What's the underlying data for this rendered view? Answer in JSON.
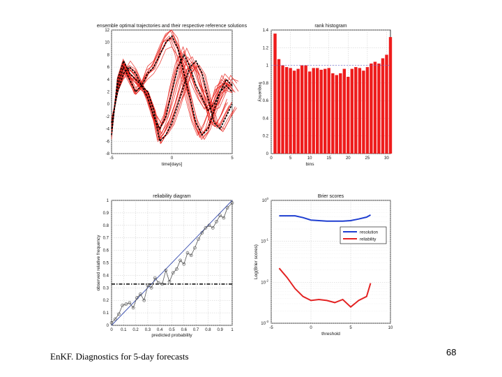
{
  "caption": "EnKF. Diagnostics for 5-day forecasts",
  "page_number": "68",
  "colors": {
    "ensemble": "#e8231c",
    "reference": "#000000",
    "bars": "#ee1c1c",
    "resolution": "#1f3fd1",
    "reliability": "#e32222",
    "diag": "#3a4fb0",
    "grid": "#c8c8c8"
  },
  "chart_data": [
    {
      "id": "trajectories",
      "type": "line",
      "title": "ensemble optimal trajectories and their respective reference solutions",
      "xlabel": "time[days]",
      "ylabel": "",
      "xlim": [
        -5,
        5
      ],
      "ylim": [
        -8,
        12
      ],
      "xticks": [
        "-5",
        "0",
        "5"
      ],
      "yticks": [
        "-8",
        "-6",
        "-4",
        "-2",
        "0",
        "2",
        "4",
        "6",
        "8",
        "10",
        "12"
      ],
      "grid": true,
      "series": [
        {
          "role": "reference",
          "x": [
            -5,
            -4.5,
            -4,
            -3.5,
            -3,
            -2.5,
            -2,
            -1.5,
            -1,
            -0.5,
            0,
            0.5,
            1,
            1.5,
            2,
            2.5,
            3,
            3.5,
            4,
            4.5,
            5
          ],
          "y": [
            -4,
            3,
            6,
            4,
            2,
            3,
            5,
            6,
            8,
            10,
            11,
            9,
            5,
            1,
            -3,
            -5,
            -4,
            -1,
            2,
            3,
            2
          ]
        },
        {
          "role": "reference",
          "x": [
            -5,
            -4.5,
            -4,
            -3.5,
            -3,
            -2.5,
            -2,
            -1.5,
            -1,
            -0.5,
            0,
            0.5,
            1,
            1.5,
            2,
            2.5,
            3,
            3.5,
            4,
            4.5,
            5
          ],
          "y": [
            -5,
            4,
            7,
            5,
            4,
            3,
            2,
            -1,
            -6,
            -5,
            -3,
            0,
            3,
            6,
            7,
            5,
            1,
            -3,
            -4,
            -2,
            0
          ]
        },
        {
          "role": "reference",
          "x": [
            -5,
            -4.5,
            -4,
            -3.5,
            -3,
            -2.5,
            -2,
            -1.5,
            -1,
            -0.5,
            0,
            0.5,
            1,
            1.5,
            2,
            2.5,
            3,
            3.5,
            4,
            4.5,
            5
          ],
          "y": [
            -3,
            2,
            5,
            6,
            5,
            3,
            1,
            -2,
            -4,
            -2,
            2,
            6,
            8,
            6,
            3,
            1,
            -1,
            0,
            2,
            4,
            3
          ]
        }
      ]
    },
    {
      "id": "rank_histogram",
      "type": "bar",
      "title": "rank histogram",
      "xlabel": "bins",
      "ylabel": "frequency",
      "xlim": [
        0,
        31
      ],
      "ylim": [
        0,
        1.4
      ],
      "xticks": [
        "0",
        "5",
        "10",
        "15",
        "20",
        "25",
        "30"
      ],
      "yticks": [
        "0",
        "0.2",
        "0.4",
        "0.6",
        "0.8",
        "1",
        "1.2",
        "1.4"
      ],
      "reference_line": 1,
      "grid": true,
      "categories": [
        1,
        2,
        3,
        4,
        5,
        6,
        7,
        8,
        9,
        10,
        11,
        12,
        13,
        14,
        15,
        16,
        17,
        18,
        19,
        20,
        21,
        22,
        23,
        24,
        25,
        26,
        27,
        28,
        29,
        30,
        31
      ],
      "values": [
        1.36,
        1.07,
        1.0,
        0.98,
        0.97,
        0.94,
        0.96,
        1.0,
        1.0,
        0.93,
        0.97,
        0.97,
        0.95,
        0.96,
        0.97,
        0.91,
        0.89,
        0.91,
        0.96,
        0.87,
        0.96,
        0.98,
        0.97,
        0.94,
        0.98,
        1.02,
        1.04,
        1.02,
        1.08,
        1.12,
        1.32
      ]
    },
    {
      "id": "reliability_diagram",
      "type": "line",
      "title": "reliability diagram",
      "xlabel": "predicted probability",
      "ylabel": "observed relative frequency",
      "xlim": [
        0,
        1
      ],
      "ylim": [
        0,
        1
      ],
      "xticks": [
        "0",
        "0.1",
        "0.2",
        "0.3",
        "0.4",
        "0.5",
        "0.6",
        "0.7",
        "0.8",
        "0.9",
        "1"
      ],
      "yticks": [
        "0",
        "0.1",
        "0.2",
        "0.3",
        "0.4",
        "0.5",
        "0.6",
        "0.7",
        "0.8",
        "0.9",
        "1"
      ],
      "grid": true,
      "climatology": 0.33,
      "series": [
        {
          "role": "diagonal",
          "x": [
            0,
            1
          ],
          "y": [
            0,
            1
          ]
        },
        {
          "role": "observed",
          "x": [
            0,
            0.03,
            0.06,
            0.09,
            0.12,
            0.15,
            0.18,
            0.21,
            0.24,
            0.27,
            0.3,
            0.33,
            0.36,
            0.39,
            0.42,
            0.45,
            0.48,
            0.51,
            0.54,
            0.57,
            0.6,
            0.63,
            0.66,
            0.69,
            0.72,
            0.75,
            0.78,
            0.81,
            0.84,
            0.87,
            0.9,
            0.93,
            0.96,
            1.0
          ],
          "y": [
            0.02,
            0.05,
            0.09,
            0.16,
            0.17,
            0.18,
            0.14,
            0.22,
            0.25,
            0.2,
            0.32,
            0.3,
            0.38,
            0.34,
            0.33,
            0.44,
            0.35,
            0.42,
            0.45,
            0.52,
            0.49,
            0.58,
            0.56,
            0.62,
            0.69,
            0.74,
            0.78,
            0.8,
            0.78,
            0.83,
            0.88,
            0.86,
            0.94,
            0.98
          ]
        }
      ]
    },
    {
      "id": "brier_scores",
      "type": "line",
      "title": "Brier scores",
      "xlabel": "threshold",
      "ylabel": "Log(Brier scores)",
      "xlim": [
        -5,
        10
      ],
      "ylim": [
        0.001,
        1
      ],
      "yscale": "log",
      "xticks": [
        "-5",
        "0",
        "5",
        "10"
      ],
      "yticks": [
        "10^0",
        "10^-1",
        "10^-2",
        "10^-3"
      ],
      "grid": true,
      "legend": "top-right",
      "series": [
        {
          "name": "resolution",
          "x": [
            -4,
            -2,
            -1,
            0,
            1,
            2,
            3,
            4,
            5,
            6,
            7,
            7.5
          ],
          "y": [
            0.42,
            0.42,
            0.38,
            0.33,
            0.32,
            0.31,
            0.31,
            0.31,
            0.32,
            0.35,
            0.39,
            0.44
          ]
        },
        {
          "name": "reliability",
          "x": [
            -4,
            -3,
            -2,
            -1,
            0,
            1,
            2,
            3,
            4,
            5,
            6,
            7,
            7.5
          ],
          "y": [
            0.022,
            0.013,
            0.007,
            0.0045,
            0.0036,
            0.0038,
            0.0036,
            0.0032,
            0.0038,
            0.0025,
            0.0036,
            0.0045,
            0.0095
          ]
        }
      ]
    }
  ]
}
